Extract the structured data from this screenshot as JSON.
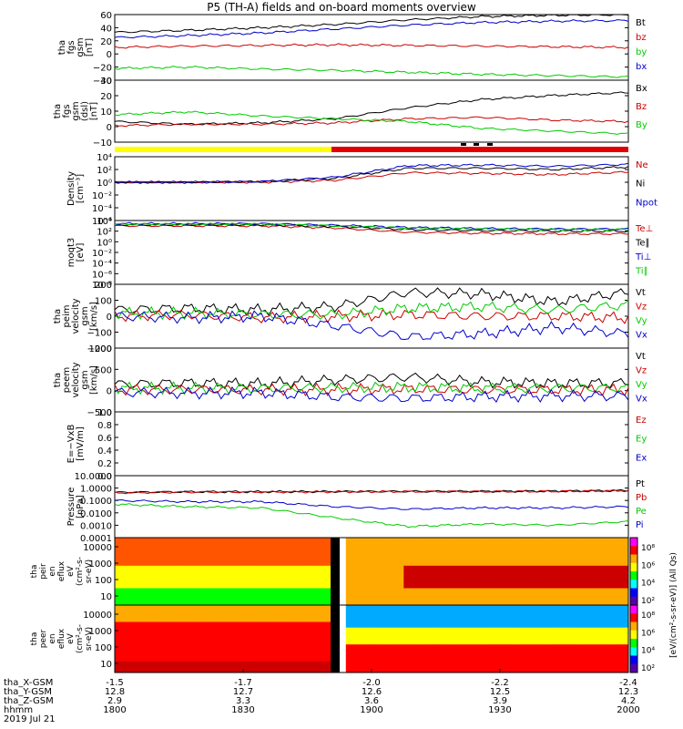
{
  "title": "P5 (TH-A) fields and on-board moments overview",
  "footer": {
    "date": "2019 Jul 21",
    "rows": [
      {
        "label": "tha_X-GSM",
        "values": [
          "-1.5",
          "-1.7",
          "-2.0",
          "-2.2",
          "-2.4"
        ]
      },
      {
        "label": "tha_Y-GSM",
        "values": [
          "12.8",
          "12.7",
          "12.6",
          "12.5",
          "12.3"
        ]
      },
      {
        "label": "tha_Z-GSM",
        "values": [
          "2.9",
          "3.3",
          "3.6",
          "3.9",
          "4.2"
        ]
      },
      {
        "label": "hhmm",
        "values": [
          "1800",
          "1830",
          "1900",
          "1930",
          "2000"
        ]
      }
    ]
  },
  "colorbar_labels": [
    "10⁸",
    "10⁶",
    "10⁴",
    "10²"
  ],
  "colorbar_title": "[eV/(cm²-s-sr-eV)] (All Qs)",
  "chart_data": [
    {
      "type": "line",
      "ylabel": [
        "tha",
        "fgs",
        "gsm",
        "[nT]"
      ],
      "ylim": [
        -40,
        60
      ],
      "ticks": [
        "60",
        "40",
        "20",
        "0",
        "−20",
        "−40"
      ],
      "series": [
        {
          "name": "Bt",
          "color": "#000000",
          "values": [
            33,
            36,
            40,
            45,
            52,
            57,
            59,
            60
          ]
        },
        {
          "name": "bz",
          "color": "#cc0000",
          "values": [
            10,
            12,
            13,
            14,
            13,
            12,
            11,
            10
          ]
        },
        {
          "name": "by",
          "color": "#00cc00",
          "values": [
            -22,
            -20,
            -23,
            -25,
            -28,
            -31,
            -33,
            -35
          ]
        },
        {
          "name": "bx",
          "color": "#0000cc",
          "values": [
            25,
            28,
            32,
            38,
            44,
            48,
            50,
            51
          ]
        }
      ]
    },
    {
      "type": "line",
      "ylabel": [
        "tha",
        "fgs",
        "gsm",
        "(dsl)",
        "[nT]"
      ],
      "ylim": [
        -15,
        30
      ],
      "ticks": [
        "30",
        "20",
        "10",
        "0",
        "−10"
      ],
      "series": [
        {
          "name": "Bx",
          "color": "#000000",
          "values": [
            0,
            -2,
            -1,
            2,
            10,
            16,
            19,
            21
          ]
        },
        {
          "name": "Bz",
          "color": "#cc0000",
          "values": [
            -3,
            -2,
            -2,
            -1,
            2,
            3,
            1,
            0
          ]
        },
        {
          "name": "By",
          "color": "#00cc00",
          "values": [
            5,
            7,
            4,
            2,
            0,
            -5,
            -7,
            -9
          ]
        }
      ]
    },
    {
      "type": "line",
      "ylabel": [
        "Density",
        "[cm⁻³]"
      ],
      "ylim": [
        -6,
        4
      ],
      "ticks": [
        "10⁴",
        "10²",
        "10⁰",
        "10⁻²",
        "10⁻⁴",
        "10⁻⁶"
      ],
      "series": [
        {
          "name": "Ne",
          "color": "#cc0000",
          "values": [
            0,
            0,
            0,
            0.3,
            1.5,
            1.4,
            1.2,
            1.6
          ]
        },
        {
          "name": "Ni",
          "color": "#000000",
          "values": [
            0,
            0,
            0.1,
            0.6,
            2.2,
            2.2,
            2.0,
            2.4
          ]
        },
        {
          "name": "Npot",
          "color": "#0000cc",
          "values": [
            0,
            0,
            0.1,
            0.8,
            2.6,
            2.7,
            2.5,
            2.8
          ]
        }
      ]
    },
    {
      "type": "line",
      "ylabel": [
        "moqt3",
        "[eV]"
      ],
      "ylim": [
        -8,
        4
      ],
      "ticks": [
        "10⁴",
        "10²",
        "10⁰",
        "10⁻²",
        "10⁻⁴",
        "10⁻⁶",
        "10⁻⁸"
      ],
      "series": [
        {
          "name": "Te⊥",
          "color": "#cc0000",
          "values": [
            3.0,
            3.0,
            3.0,
            2.6,
            1.8,
            1.6,
            1.5,
            1.5
          ]
        },
        {
          "name": "Te∥",
          "color": "#000000",
          "values": [
            3.2,
            3.2,
            3.2,
            2.9,
            2.3,
            2.1,
            2.0,
            2.0
          ]
        },
        {
          "name": "Ti⊥",
          "color": "#0000cc",
          "values": [
            3.4,
            3.4,
            3.4,
            3.1,
            2.7,
            2.5,
            2.4,
            2.4
          ]
        },
        {
          "name": "Ti∥",
          "color": "#00cc00",
          "values": [
            3.3,
            3.3,
            3.3,
            3.0,
            2.6,
            2.4,
            2.3,
            2.3
          ]
        }
      ]
    },
    {
      "type": "line",
      "ylabel": [
        "tha",
        "peim",
        "velocity",
        "gsm",
        "[km/s]"
      ],
      "ylim": [
        -200,
        200
      ],
      "ticks": [
        "200",
        "100",
        "0",
        "−100",
        "−200"
      ],
      "series": [
        {
          "name": "Vt",
          "color": "#000000",
          "values": [
            40,
            50,
            40,
            60,
            150,
            140,
            90,
            150
          ]
        },
        {
          "name": "Vz",
          "color": "#cc0000",
          "values": [
            0,
            10,
            -10,
            0,
            10,
            0,
            0,
            -10
          ]
        },
        {
          "name": "Vy",
          "color": "#00cc00",
          "values": [
            20,
            20,
            10,
            10,
            50,
            60,
            40,
            70
          ]
        },
        {
          "name": "Vx",
          "color": "#0000cc",
          "values": [
            0,
            -10,
            0,
            -60,
            -130,
            -110,
            -70,
            -110
          ]
        }
      ]
    },
    {
      "type": "line",
      "ylabel": [
        "tha",
        "peem",
        "velocity",
        "gsm",
        "[km/s]"
      ],
      "ylim": [
        -500,
        1000
      ],
      "ticks": [
        "1000",
        "500",
        "0",
        "−500"
      ],
      "series": [
        {
          "name": "Vt",
          "color": "#000000",
          "values": [
            150,
            180,
            160,
            250,
            320,
            200,
            170,
            180
          ]
        },
        {
          "name": "Vz",
          "color": "#cc0000",
          "values": [
            20,
            30,
            20,
            30,
            40,
            20,
            20,
            20
          ]
        },
        {
          "name": "Vy",
          "color": "#00cc00",
          "values": [
            60,
            60,
            50,
            70,
            80,
            60,
            60,
            60
          ]
        },
        {
          "name": "Vx",
          "color": "#0000cc",
          "values": [
            -40,
            -60,
            -50,
            -150,
            -180,
            -140,
            -120,
            -130
          ]
        }
      ]
    },
    {
      "type": "line",
      "ylabel": [
        "E=−VxB",
        "[mV/m]"
      ],
      "ylim": [
        0,
        1
      ],
      "ticks": [
        "1.0",
        "0.8",
        "0.6",
        "0.4",
        "0.2",
        "0.0"
      ],
      "series": [
        {
          "name": "Ez",
          "color": "#cc0000",
          "values": []
        },
        {
          "name": "Ey",
          "color": "#00cc00",
          "values": []
        },
        {
          "name": "Ex",
          "color": "#0000cc",
          "values": []
        }
      ]
    },
    {
      "type": "line",
      "ylabel": [
        "Pressure",
        "[nPa]"
      ],
      "ylim": [
        -4,
        1
      ],
      "ticks": [
        "10.0000",
        "1.0000",
        "0.1000",
        "0.0100",
        "0.0010",
        "0.0001"
      ],
      "series": [
        {
          "name": "Pt",
          "color": "#000000",
          "values": [
            -0.35,
            -0.3,
            -0.3,
            -0.28,
            -0.27,
            -0.27,
            -0.25,
            -0.2
          ]
        },
        {
          "name": "Pb",
          "color": "#cc0000",
          "values": [
            -0.38,
            -0.33,
            -0.32,
            -0.3,
            -0.28,
            -0.28,
            -0.26,
            -0.21
          ]
        },
        {
          "name": "Pe",
          "color": "#00cc00",
          "values": [
            -1.3,
            -1.5,
            -1.6,
            -2.4,
            -3.1,
            -2.9,
            -3.0,
            -2.7
          ]
        },
        {
          "name": "Pi",
          "color": "#0000cc",
          "values": [
            -1.0,
            -1.1,
            -1.1,
            -1.5,
            -1.7,
            -1.6,
            -1.6,
            -1.5
          ]
        }
      ]
    },
    {
      "type": "heatmap",
      "ylabel": [
        "tha",
        "peir",
        "en",
        "eflux",
        "eV",
        "(cm²-s-",
        "sr-eV)"
      ],
      "yticks": [
        "10000",
        "1000",
        "100",
        "10"
      ]
    },
    {
      "type": "heatmap",
      "ylabel": [
        "tha",
        "peer",
        "en",
        "eflux",
        "eV",
        "(cm²-s-",
        "sr-eV)"
      ],
      "yticks": [
        "10000",
        "1000",
        "100",
        "10"
      ]
    }
  ]
}
